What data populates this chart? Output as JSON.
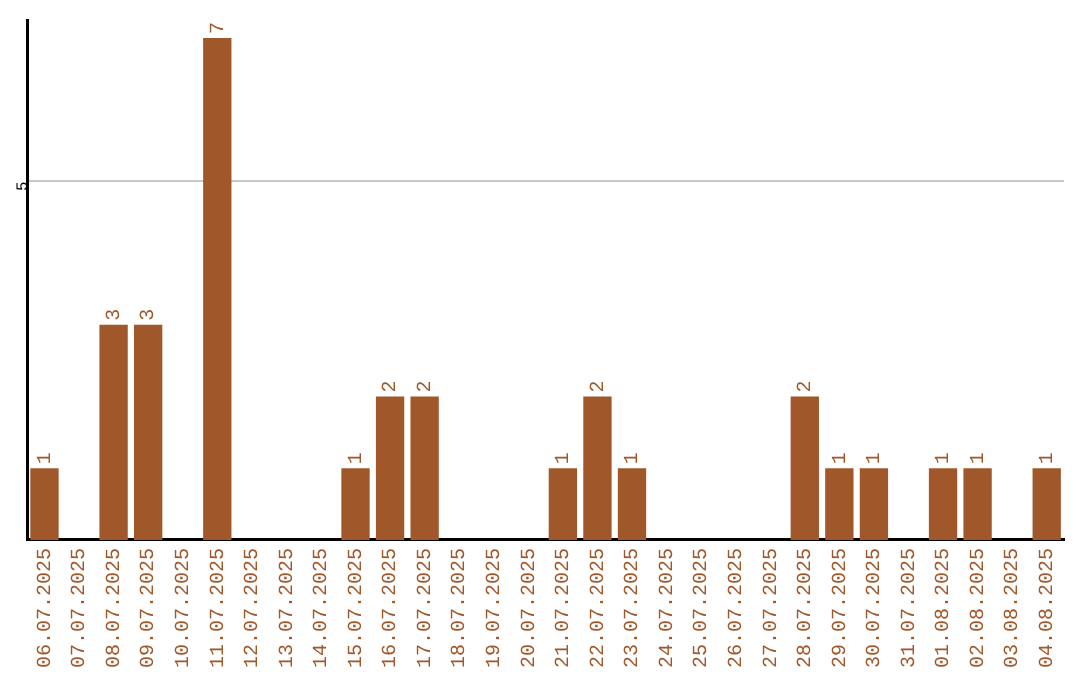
{
  "chart_data": {
    "type": "bar",
    "categories": [
      "06.07.2025",
      "07.07.2025",
      "08.07.2025",
      "09.07.2025",
      "10.07.2025",
      "11.07.2025",
      "12.07.2025",
      "13.07.2025",
      "14.07.2025",
      "15.07.2025",
      "16.07.2025",
      "17.07.2025",
      "18.07.2025",
      "19.07.2025",
      "20.07.2025",
      "21.07.2025",
      "22.07.2025",
      "23.07.2025",
      "24.07.2025",
      "25.07.2025",
      "26.07.2025",
      "27.07.2025",
      "28.07.2025",
      "29.07.2025",
      "30.07.2025",
      "31.07.2025",
      "01.08.2025",
      "02.08.2025",
      "03.08.2025",
      "04.08.2025"
    ],
    "values": [
      1,
      0,
      3,
      3,
      0,
      7,
      0,
      0,
      0,
      1,
      2,
      2,
      0,
      0,
      0,
      1,
      2,
      1,
      0,
      0,
      0,
      0,
      2,
      1,
      1,
      0,
      1,
      1,
      0,
      1
    ],
    "value_labels": [
      "1",
      null,
      "3",
      "3",
      null,
      "7",
      null,
      null,
      null,
      "1",
      "2",
      "2",
      null,
      null,
      null,
      "1",
      "2",
      "1",
      null,
      null,
      null,
      null,
      "2",
      "1",
      "1",
      null,
      "1",
      "1",
      null,
      "1"
    ],
    "color": "#a0582a",
    "ylim": [
      0,
      7.25
    ],
    "yticks": [
      5
    ],
    "grid": "y",
    "legend": false
  }
}
